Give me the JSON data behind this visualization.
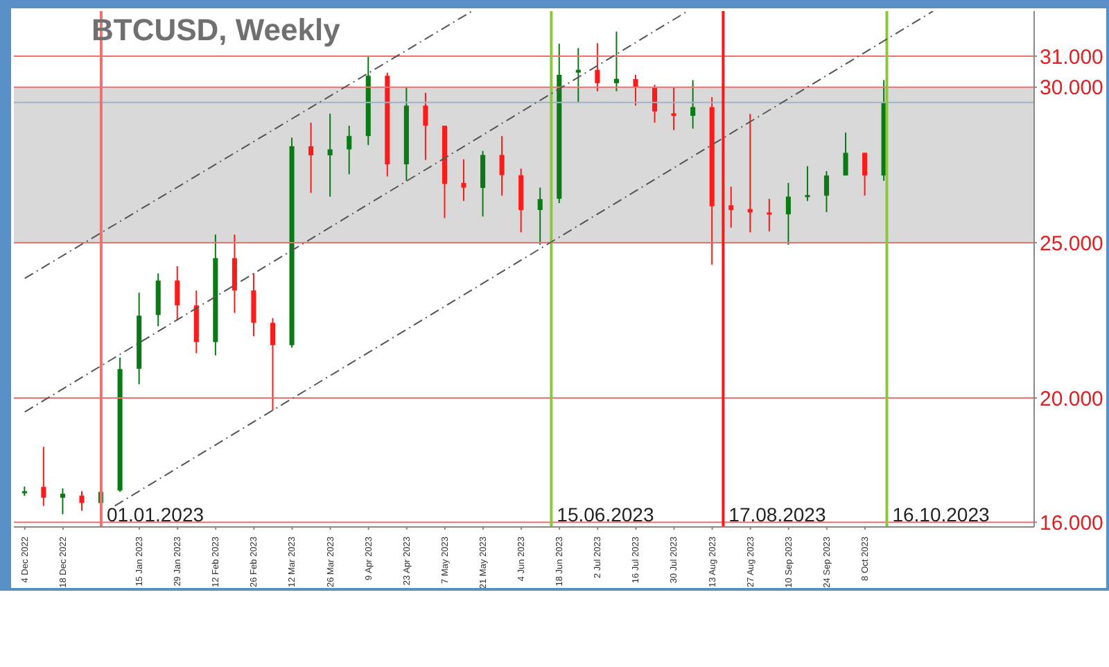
{
  "chart_data": {
    "type": "candlestick",
    "title": "BTCUSD, Weekly",
    "x": [
      "2022-12-04",
      "2022-12-11",
      "2022-12-18",
      "2022-12-25",
      "2023-01-01",
      "2023-01-08",
      "2023-01-15",
      "2023-01-22",
      "2023-01-29",
      "2023-02-05",
      "2023-02-12",
      "2023-02-19",
      "2023-02-26",
      "2023-03-05",
      "2023-03-12",
      "2023-03-19",
      "2023-03-26",
      "2023-04-02",
      "2023-04-09",
      "2023-04-16",
      "2023-04-23",
      "2023-04-30",
      "2023-05-07",
      "2023-05-14",
      "2023-05-21",
      "2023-05-28",
      "2023-06-04",
      "2023-06-11",
      "2023-06-18",
      "2023-06-25",
      "2023-07-02",
      "2023-07-09",
      "2023-07-16",
      "2023-07-23",
      "2023-07-30",
      "2023-08-06",
      "2023-08-13",
      "2023-08-20",
      "2023-08-27",
      "2023-09-03",
      "2023-09-10",
      "2023-09-17",
      "2023-09-24",
      "2023-10-01",
      "2023-10-08",
      "2023-10-15"
    ],
    "ohlc": [
      [
        16950,
        17150,
        16850,
        17000
      ],
      [
        17140,
        18430,
        16530,
        16790
      ],
      [
        16790,
        17090,
        16260,
        16920
      ],
      [
        16860,
        17000,
        16370,
        16620
      ],
      [
        16620,
        16990,
        16500,
        16980
      ],
      [
        17020,
        21300,
        16980,
        20930
      ],
      [
        20940,
        23390,
        20440,
        22650
      ],
      [
        22670,
        24010,
        22310,
        23780
      ],
      [
        23780,
        24240,
        22520,
        22980
      ],
      [
        22980,
        23460,
        21440,
        21800
      ],
      [
        21800,
        25260,
        21370,
        24500
      ],
      [
        24500,
        25260,
        22740,
        23460
      ],
      [
        23460,
        24010,
        21990,
        22420
      ],
      [
        22420,
        22570,
        19600,
        21700
      ],
      [
        21700,
        28380,
        21620,
        28100
      ],
      [
        28100,
        28860,
        26600,
        27810
      ],
      [
        27810,
        29150,
        26480,
        28000
      ],
      [
        28000,
        28760,
        27200,
        28430
      ],
      [
        28430,
        30980,
        28140,
        30370
      ],
      [
        30370,
        30470,
        27130,
        27520
      ],
      [
        27520,
        30010,
        26990,
        29410
      ],
      [
        29410,
        29820,
        27660,
        28760
      ],
      [
        28760,
        28760,
        25790,
        26890
      ],
      [
        26920,
        27680,
        26340,
        26770
      ],
      [
        26760,
        27950,
        25840,
        27820
      ],
      [
        27820,
        28430,
        26510,
        27170
      ],
      [
        27170,
        27380,
        25330,
        26050
      ],
      [
        26050,
        26770,
        24930,
        26400
      ],
      [
        26410,
        31400,
        26270,
        30400
      ],
      [
        30470,
        31260,
        29510,
        30560
      ],
      [
        30560,
        31420,
        29870,
        30130
      ],
      [
        30130,
        31790,
        29870,
        30270
      ],
      [
        30260,
        30400,
        29410,
        30010
      ],
      [
        29980,
        30080,
        28860,
        29220
      ],
      [
        29160,
        30010,
        28620,
        29080
      ],
      [
        29080,
        30230,
        28670,
        29360
      ],
      [
        29360,
        29680,
        24290,
        26170
      ],
      [
        26200,
        26800,
        25480,
        26050
      ],
      [
        26080,
        29140,
        25330,
        25970
      ],
      [
        25970,
        26410,
        25360,
        25910
      ],
      [
        25910,
        26920,
        24930,
        26480
      ],
      [
        26480,
        27460,
        26340,
        26530
      ],
      [
        26510,
        27300,
        25980,
        27160
      ],
      [
        27160,
        28540,
        27160,
        27890
      ],
      [
        27890,
        27890,
        26510,
        27160
      ],
      [
        27160,
        30230,
        26990,
        29510
      ]
    ],
    "colors": [
      "#0a7a14",
      "#ff1a1a",
      "#0a7a14",
      "#ff1a1a",
      "#0a7a14",
      "#0a7a14",
      "#0a7a14",
      "#0a7a14",
      "#ff1a1a",
      "#ff1a1a",
      "#0a7a14",
      "#ff1a1a",
      "#ff1a1a",
      "#ff1a1a",
      "#0a7a14",
      "#ff1a1a",
      "#0a7a14",
      "#0a7a14",
      "#0a7a14",
      "#ff1a1a",
      "#0a7a14",
      "#ff1a1a",
      "#ff1a1a",
      "#ff1a1a",
      "#0a7a14",
      "#ff1a1a",
      "#ff1a1a",
      "#0a7a14",
      "#0a7a14",
      "#0a7a14",
      "#ff1a1a",
      "#0a7a14",
      "#ff1a1a",
      "#ff1a1a",
      "#ff1a1a",
      "#0a7a14",
      "#ff1a1a",
      "#ff1a1a",
      "#ff1a1a",
      "#ff1a1a",
      "#0a7a14",
      "#0a7a14",
      "#0a7a14",
      "#0a7a14",
      "#ff1a1a",
      "#0a7a14"
    ],
    "series": [
      {
        "type": "line",
        "x": [
          "2022-12-04",
          "2023-05-17"
        ],
        "values": [
          23850,
          32450
        ],
        "color": "#555555",
        "line_style": "dashed"
      },
      {
        "type": "line",
        "x": [
          "2022-12-04",
          "2023-08-04"
        ],
        "values": [
          19550,
          32450
        ],
        "color": "#555555",
        "line_style": "dashed"
      },
      {
        "type": "line",
        "x": [
          "2023-01-06",
          "2023-11-02"
        ],
        "values": [
          16530,
          32450
        ],
        "color": "#555555",
        "line_style": "dashed"
      }
    ],
    "xlim": [
      "2022-11-30",
      "2023-12-09"
    ],
    "xticks": [
      {
        "value": "2022-12-04",
        "label": "4 Dec 2022"
      },
      {
        "value": "2022-12-18",
        "label": "18 Dec 2022"
      },
      {
        "value": "2023-01-15",
        "label": "15 Jan 2023"
      },
      {
        "value": "2023-01-29",
        "label": "29 Jan 2023"
      },
      {
        "value": "2023-02-12",
        "label": "12 Feb 2023"
      },
      {
        "value": "2023-02-26",
        "label": "26 Feb 2023"
      },
      {
        "value": "2023-03-12",
        "label": "12 Mar 2023"
      },
      {
        "value": "2023-03-26",
        "label": "26 Mar 2023"
      },
      {
        "value": "2023-04-09",
        "label": "9 Apr 2023"
      },
      {
        "value": "2023-04-23",
        "label": "23 Apr 2023"
      },
      {
        "value": "2023-05-07",
        "label": "7 May 2023"
      },
      {
        "value": "2023-05-21",
        "label": "21 May 2023"
      },
      {
        "value": "2023-06-04",
        "label": "4 Jun 2023"
      },
      {
        "value": "2023-06-18",
        "label": "18 Jun 2023"
      },
      {
        "value": "2023-07-02",
        "label": "2 Jul 2023"
      },
      {
        "value": "2023-07-16",
        "label": "16 Jul 2023"
      },
      {
        "value": "2023-07-30",
        "label": "30 Jul 2023"
      },
      {
        "value": "2023-08-13",
        "label": "13 Aug 2023"
      },
      {
        "value": "2023-08-27",
        "label": "27 Aug 2023"
      },
      {
        "value": "2023-09-10",
        "label": "10 Sep 2023"
      },
      {
        "value": "2023-09-24",
        "label": "24 Sep 2023"
      },
      {
        "value": "2023-10-08",
        "label": "8 Oct 2023"
      }
    ],
    "ylim": [
      15850,
      32450
    ],
    "yticks": [
      {
        "value": 16000,
        "label": "16.000"
      },
      {
        "value": 20000,
        "label": "20.000"
      },
      {
        "value": 25000,
        "label": "25.000"
      },
      {
        "value": 30000,
        "label": "30.000"
      },
      {
        "value": 31000,
        "label": "31.000"
      }
    ],
    "bands": [
      {
        "axis": "y",
        "from": 25000,
        "to": 30000,
        "color": "#d9d9d9"
      }
    ],
    "ref_lines": [
      {
        "axis": "y",
        "value": 31000,
        "color": "#f07070"
      },
      {
        "axis": "y",
        "value": 30000,
        "color": "#f07070"
      },
      {
        "axis": "y",
        "value": 25000,
        "color": "#f07070"
      },
      {
        "axis": "y",
        "value": 20000,
        "color": "#f07070"
      },
      {
        "axis": "y",
        "value": 16000,
        "color": "#f07070"
      },
      {
        "axis": "y",
        "value": 29510,
        "color": "#9fb3c8"
      },
      {
        "axis": "x",
        "value": "2023-01-01",
        "label": "01.01.2023",
        "color": "#f07070"
      },
      {
        "axis": "x",
        "value": "2023-06-15",
        "label": "15.06.2023",
        "color": "#8cc63f"
      },
      {
        "axis": "x",
        "value": "2023-08-17",
        "label": "17.08.2023",
        "color": "#ff1a1a"
      },
      {
        "axis": "x",
        "value": "2023-10-16",
        "label": "16.10.2023",
        "color": "#8cc63f"
      }
    ],
    "grid": false,
    "legend": false
  }
}
